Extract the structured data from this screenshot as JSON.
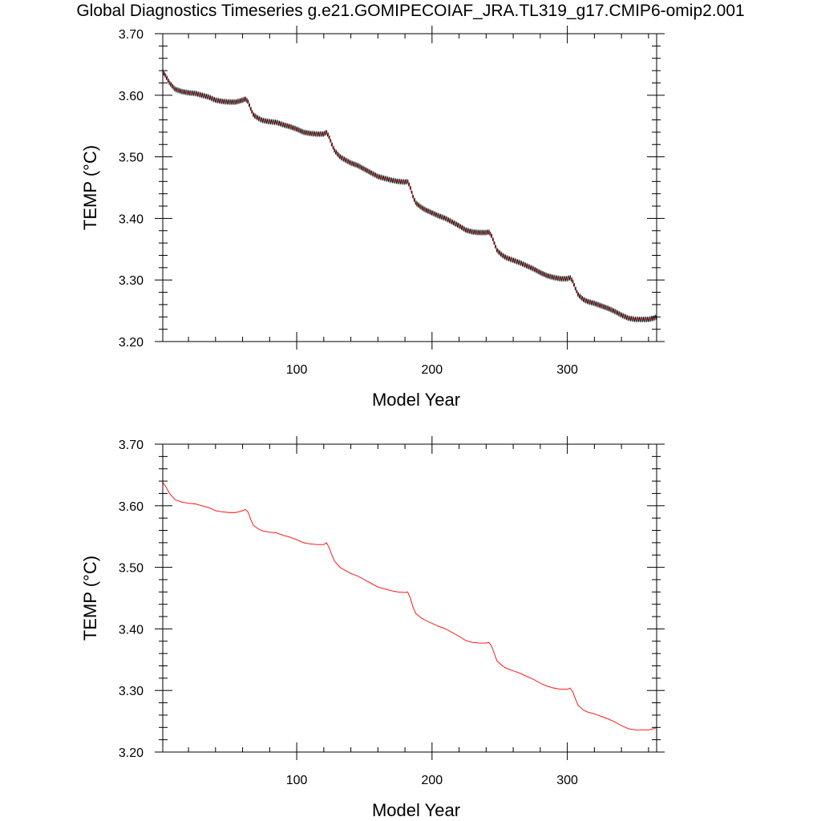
{
  "title": "Global Diagnostics Timeseries g.e21.GOMIPECOIAF_JRA.TL319_g17.CMIP6-omip2.001",
  "chart_data": [
    {
      "type": "line",
      "title": "",
      "xlabel": "Model Year",
      "ylabel": "TEMP (°C)",
      "xlim": [
        1,
        366
      ],
      "ylim": [
        3.2,
        3.7
      ],
      "xticks": [
        100,
        200,
        300
      ],
      "xtick_labels": [
        "100",
        "200",
        "300"
      ],
      "yticks": [
        3.2,
        3.3,
        3.4,
        3.5,
        3.6,
        3.7
      ],
      "ytick_labels": [
        "3.20",
        "3.30",
        "3.40",
        "3.50",
        "3.60",
        "3.70"
      ],
      "grid": false,
      "series": [
        {
          "name": "",
          "color": "#000000",
          "style": "monthly values with seasonal oscillation (dense)",
          "seasonal_amplitude": 0.004,
          "x": [
            1,
            3,
            6,
            10,
            15,
            20,
            25,
            30,
            35,
            40,
            45,
            50,
            55,
            60,
            62,
            64,
            66,
            68,
            72,
            75,
            80,
            85,
            90,
            95,
            100,
            105,
            110,
            115,
            120,
            122,
            124,
            126,
            128,
            132,
            135,
            140,
            145,
            150,
            155,
            160,
            165,
            170,
            175,
            180,
            182,
            184,
            186,
            188,
            192,
            195,
            200,
            205,
            210,
            215,
            220,
            225,
            230,
            235,
            240,
            242,
            244,
            246,
            248,
            252,
            255,
            260,
            265,
            270,
            275,
            280,
            285,
            290,
            295,
            300,
            302,
            304,
            306,
            308,
            312,
            315,
            320,
            325,
            330,
            335,
            340,
            345,
            350,
            355,
            360,
            362,
            364,
            366
          ],
          "y": [
            3.638,
            3.632,
            3.62,
            3.61,
            3.606,
            3.604,
            3.603,
            3.6,
            3.597,
            3.592,
            3.59,
            3.589,
            3.589,
            3.592,
            3.594,
            3.59,
            3.578,
            3.568,
            3.562,
            3.559,
            3.557,
            3.556,
            3.552,
            3.549,
            3.545,
            3.54,
            3.538,
            3.537,
            3.537,
            3.54,
            3.532,
            3.52,
            3.51,
            3.5,
            3.496,
            3.49,
            3.486,
            3.48,
            3.474,
            3.468,
            3.465,
            3.462,
            3.46,
            3.459,
            3.46,
            3.45,
            3.435,
            3.425,
            3.418,
            3.414,
            3.409,
            3.404,
            3.4,
            3.394,
            3.388,
            3.381,
            3.378,
            3.377,
            3.377,
            3.378,
            3.372,
            3.36,
            3.348,
            3.34,
            3.336,
            3.332,
            3.328,
            3.323,
            3.318,
            3.312,
            3.307,
            3.304,
            3.302,
            3.302,
            3.304,
            3.298,
            3.286,
            3.276,
            3.268,
            3.265,
            3.262,
            3.258,
            3.254,
            3.249,
            3.243,
            3.238,
            3.236,
            3.236,
            3.236,
            3.237,
            3.238,
            3.24
          ]
        }
      ]
    },
    {
      "type": "line",
      "title": "",
      "xlabel": "Model Year",
      "ylabel": "TEMP (°C)",
      "xlim": [
        1,
        366
      ],
      "ylim": [
        3.2,
        3.7
      ],
      "xticks": [
        100,
        200,
        300
      ],
      "xtick_labels": [
        "100",
        "200",
        "300"
      ],
      "yticks": [
        3.2,
        3.3,
        3.4,
        3.5,
        3.6,
        3.7
      ],
      "ytick_labels": [
        "3.20",
        "3.30",
        "3.40",
        "3.50",
        "3.60",
        "3.70"
      ],
      "grid": false,
      "series": [
        {
          "name": "",
          "color": "#ff0000",
          "style": "annual mean",
          "x": [
            1,
            3,
            6,
            10,
            15,
            20,
            25,
            30,
            35,
            40,
            45,
            50,
            55,
            60,
            62,
            64,
            66,
            68,
            72,
            75,
            80,
            85,
            90,
            95,
            100,
            105,
            110,
            115,
            120,
            122,
            124,
            126,
            128,
            132,
            135,
            140,
            145,
            150,
            155,
            160,
            165,
            170,
            175,
            180,
            182,
            184,
            186,
            188,
            192,
            195,
            200,
            205,
            210,
            215,
            220,
            225,
            230,
            235,
            240,
            242,
            244,
            246,
            248,
            252,
            255,
            260,
            265,
            270,
            275,
            280,
            285,
            290,
            295,
            300,
            302,
            304,
            306,
            308,
            312,
            315,
            320,
            325,
            330,
            335,
            340,
            345,
            350,
            355,
            360,
            362,
            364,
            366
          ],
          "y": [
            3.638,
            3.632,
            3.62,
            3.61,
            3.606,
            3.604,
            3.603,
            3.6,
            3.597,
            3.592,
            3.59,
            3.589,
            3.589,
            3.592,
            3.594,
            3.59,
            3.578,
            3.568,
            3.562,
            3.559,
            3.557,
            3.556,
            3.552,
            3.549,
            3.545,
            3.54,
            3.538,
            3.537,
            3.537,
            3.54,
            3.532,
            3.52,
            3.51,
            3.5,
            3.496,
            3.49,
            3.486,
            3.48,
            3.474,
            3.468,
            3.465,
            3.462,
            3.46,
            3.459,
            3.46,
            3.45,
            3.435,
            3.425,
            3.418,
            3.414,
            3.409,
            3.404,
            3.4,
            3.394,
            3.388,
            3.381,
            3.378,
            3.377,
            3.377,
            3.378,
            3.372,
            3.36,
            3.348,
            3.34,
            3.336,
            3.332,
            3.328,
            3.323,
            3.318,
            3.312,
            3.307,
            3.304,
            3.302,
            3.302,
            3.304,
            3.298,
            3.286,
            3.276,
            3.268,
            3.265,
            3.262,
            3.258,
            3.254,
            3.249,
            3.243,
            3.238,
            3.236,
            3.236,
            3.236,
            3.237,
            3.238,
            3.24
          ]
        }
      ]
    }
  ]
}
